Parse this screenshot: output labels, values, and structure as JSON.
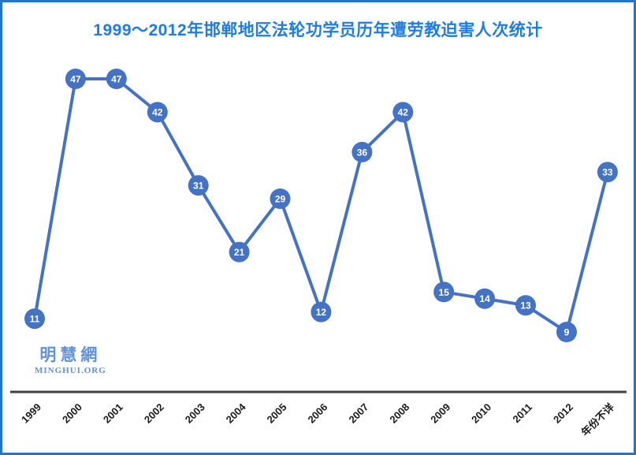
{
  "frame": {
    "border_color": "#2374cf",
    "background": "#ffffff"
  },
  "title": {
    "text": "1999～2012年邯郸地区法轮功学员历年遭劳教迫害人次统计",
    "color": "#1e7ce4"
  },
  "logo": {
    "chinese": "明慧網",
    "latin": "MINGHUI.ORG",
    "color": "#6292d8"
  },
  "chart_data": {
    "type": "line",
    "title": "1999～2012年邯郸地区法轮功学员历年遭劳教迫害人次统计",
    "categories": [
      "1999",
      "2000",
      "2001",
      "2002",
      "2003",
      "2004",
      "2005",
      "2006",
      "2007",
      "2008",
      "2009",
      "2010",
      "2011",
      "2012",
      "年份不详"
    ],
    "values": [
      11,
      47,
      47,
      42,
      31,
      21,
      29,
      12,
      36,
      42,
      15,
      14,
      13,
      9,
      33
    ],
    "xlabel": "",
    "ylabel": "",
    "ylim": [
      0,
      50
    ],
    "grid": false,
    "legend": false,
    "y_axis_visible": false,
    "marker_style": "filled-circle-with-value",
    "tick_label_rotation": -45,
    "line_color": "#4472C4",
    "marker_color": "#4472C4",
    "value_label_color": "#ffffff",
    "axis_line_color": "#3f3f3f",
    "tick_label_color": "#1a1a1a"
  }
}
